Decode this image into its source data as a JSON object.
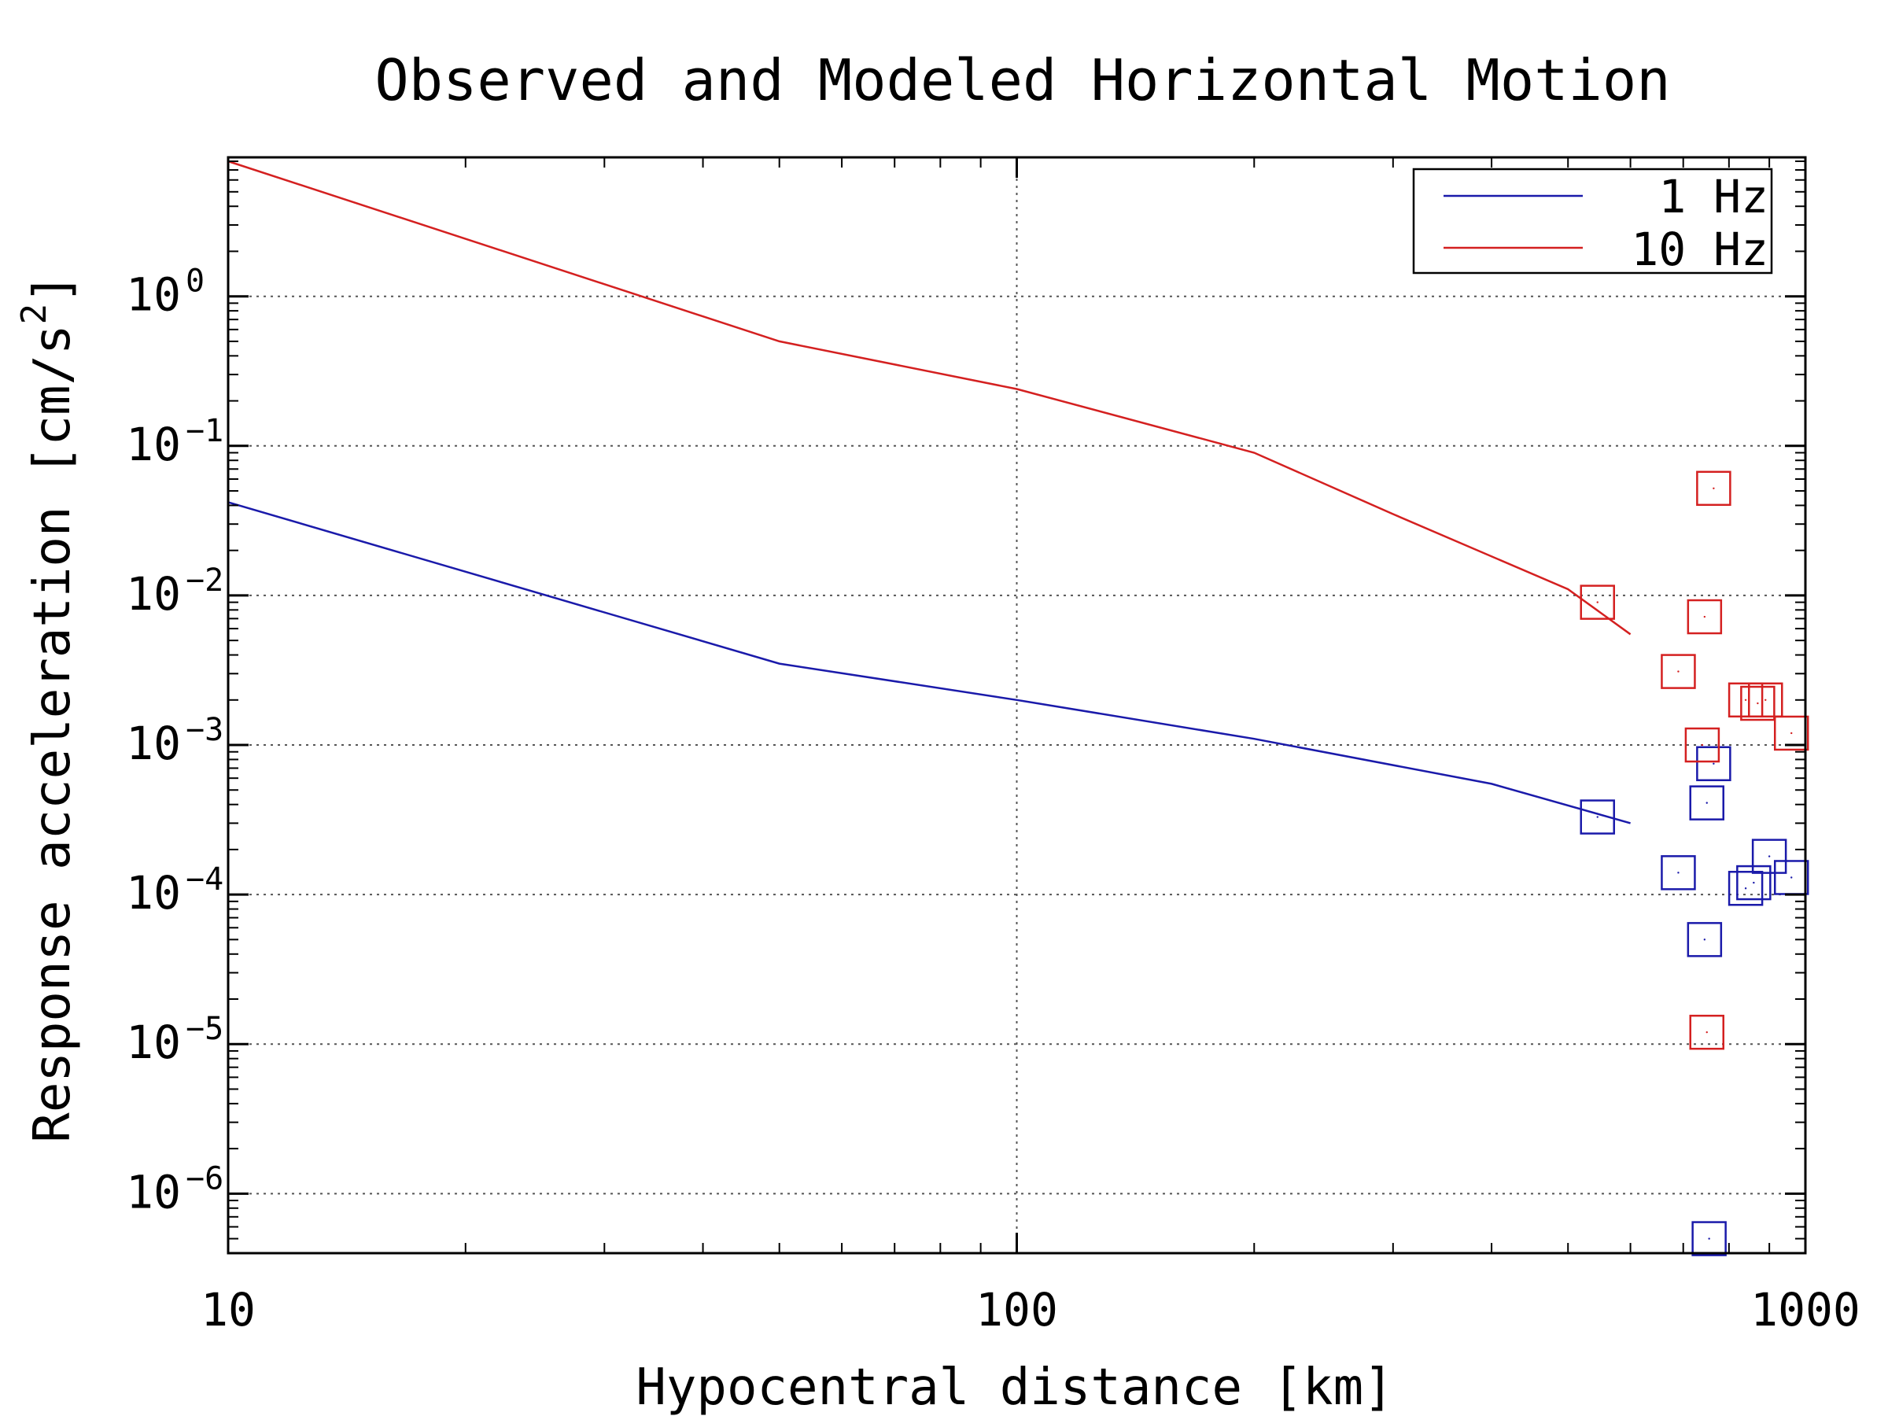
{
  "chart_data": {
    "type": "scatter",
    "title": "Observed and Modeled Horizontal Motion",
    "xlabel": "Hypocentral distance [km]",
    "ylabel_text": "Response acceleration [cm/s",
    "ylabel_sup": "2",
    "ylabel_end": "]",
    "x_scale": "log",
    "y_scale": "log",
    "xlim": [
      10,
      1000
    ],
    "ylim": [
      4e-07,
      8.5
    ],
    "grid": true,
    "legend_position": "top-right",
    "x_ticks": [
      {
        "value": 10,
        "label": "10"
      },
      {
        "value": 100,
        "label": "100"
      },
      {
        "value": 1000,
        "label": "1000"
      }
    ],
    "y_ticks": [
      {
        "value": 1,
        "base": "10",
        "exp": "0"
      },
      {
        "value": 0.1,
        "base": "10",
        "exp": "−1"
      },
      {
        "value": 0.01,
        "base": "10",
        "exp": "−2"
      },
      {
        "value": 0.001,
        "base": "10",
        "exp": "−3"
      },
      {
        "value": 0.0001,
        "base": "10",
        "exp": "−4"
      },
      {
        "value": 1e-05,
        "base": "10",
        "exp": "−5"
      },
      {
        "value": 1e-06,
        "base": "10",
        "exp": "−6"
      }
    ],
    "series": [
      {
        "name": "1 Hz",
        "color": "#1a1aaa",
        "model": {
          "x": [
            10,
            50,
            100,
            200,
            400,
            600
          ],
          "y": [
            0.042,
            0.0035,
            0.002,
            0.0011,
            0.00055,
            0.0003
          ]
        },
        "observed": {
          "x": [
            545,
            690,
            745,
            750,
            765,
            840,
            900,
            860,
            960,
            755
          ],
          "y": [
            0.00033,
            0.00014,
            5e-05,
            0.00041,
            0.00075,
            0.00011,
            0.00018,
            0.00012,
            0.00013,
            5e-07
          ]
        }
      },
      {
        "name": "10 Hz",
        "color": "#d42020",
        "model": {
          "x": [
            10,
            50,
            100,
            200,
            300,
            500,
            600
          ],
          "y": [
            8.0,
            0.5,
            0.24,
            0.09,
            0.035,
            0.011,
            0.0055
          ]
        },
        "observed": {
          "x": [
            545,
            690,
            745,
            765,
            740,
            840,
            870,
            890,
            960,
            750
          ],
          "y": [
            0.009,
            0.0031,
            0.0072,
            0.052,
            0.001,
            0.002,
            0.0019,
            0.002,
            0.0012,
            1.2e-05
          ]
        }
      }
    ]
  }
}
